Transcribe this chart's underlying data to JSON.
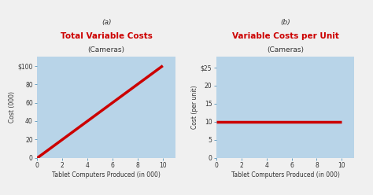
{
  "fig_bg": "#f0f0f0",
  "plot_bg": "#b8d4e8",
  "line_color": "#cc0000",
  "tick_color": "#6a9fc0",
  "label_color": "#333333",
  "title_color_red": "#cc0000",
  "title_color_black": "#333333",
  "chart_a": {
    "title_line1": "(a)",
    "title_line2": "Total Variable Costs",
    "title_line3": "(Cameras)",
    "xlabel": "Tablet Computers Produced (in 000)",
    "ylabel": "Cost (000)",
    "x_data": [
      0,
      10
    ],
    "y_data": [
      0,
      100
    ],
    "xlim": [
      0,
      11
    ],
    "ylim": [
      0,
      110
    ],
    "xticks": [
      0,
      2,
      4,
      6,
      8,
      10
    ],
    "yticks": [
      0,
      20,
      40,
      60,
      80,
      100
    ],
    "ytick_labels": [
      "0",
      "20",
      "40",
      "60",
      "80",
      "$100"
    ]
  },
  "chart_b": {
    "title_line1": "(b)",
    "title_line2": "Variable Costs per Unit",
    "title_line3": "(Cameras)",
    "xlabel": "Tablet Computers Produced (in 000)",
    "ylabel": "Cost (per unit)",
    "x_data": [
      0,
      10
    ],
    "y_data": [
      10,
      10
    ],
    "xlim": [
      0,
      11
    ],
    "ylim": [
      0,
      28
    ],
    "xticks": [
      0,
      2,
      4,
      6,
      8,
      10
    ],
    "yticks": [
      0,
      5,
      10,
      15,
      20,
      25
    ],
    "ytick_labels": [
      "0",
      "5",
      "10",
      "15",
      "20",
      "$25"
    ]
  }
}
